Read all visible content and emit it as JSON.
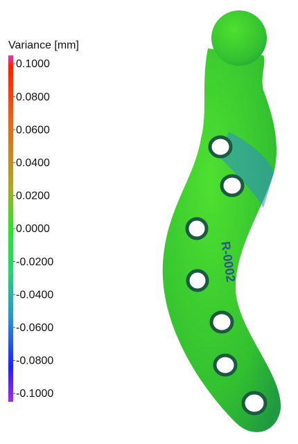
{
  "colorbar": {
    "title": "Variance [mm]",
    "lim": [
      -0.1,
      0.1
    ],
    "ticks": [
      {
        "value": 0.1,
        "label": "0.1000"
      },
      {
        "value": 0.08,
        "label": "0.0800"
      },
      {
        "value": 0.06,
        "label": "0.0600"
      },
      {
        "value": 0.04,
        "label": "0.0400"
      },
      {
        "value": 0.02,
        "label": "0.0200"
      },
      {
        "value": 0,
        "label": "0.0000"
      },
      {
        "value": -0.02,
        "label": "-0.0200"
      },
      {
        "value": -0.04,
        "label": "-0.0400"
      },
      {
        "value": -0.06,
        "label": "-0.0600"
      },
      {
        "value": -0.08,
        "label": "-0.0800"
      },
      {
        "value": -0.1,
        "label": "-0.1000"
      }
    ]
  },
  "part_label": "R-0002"
}
